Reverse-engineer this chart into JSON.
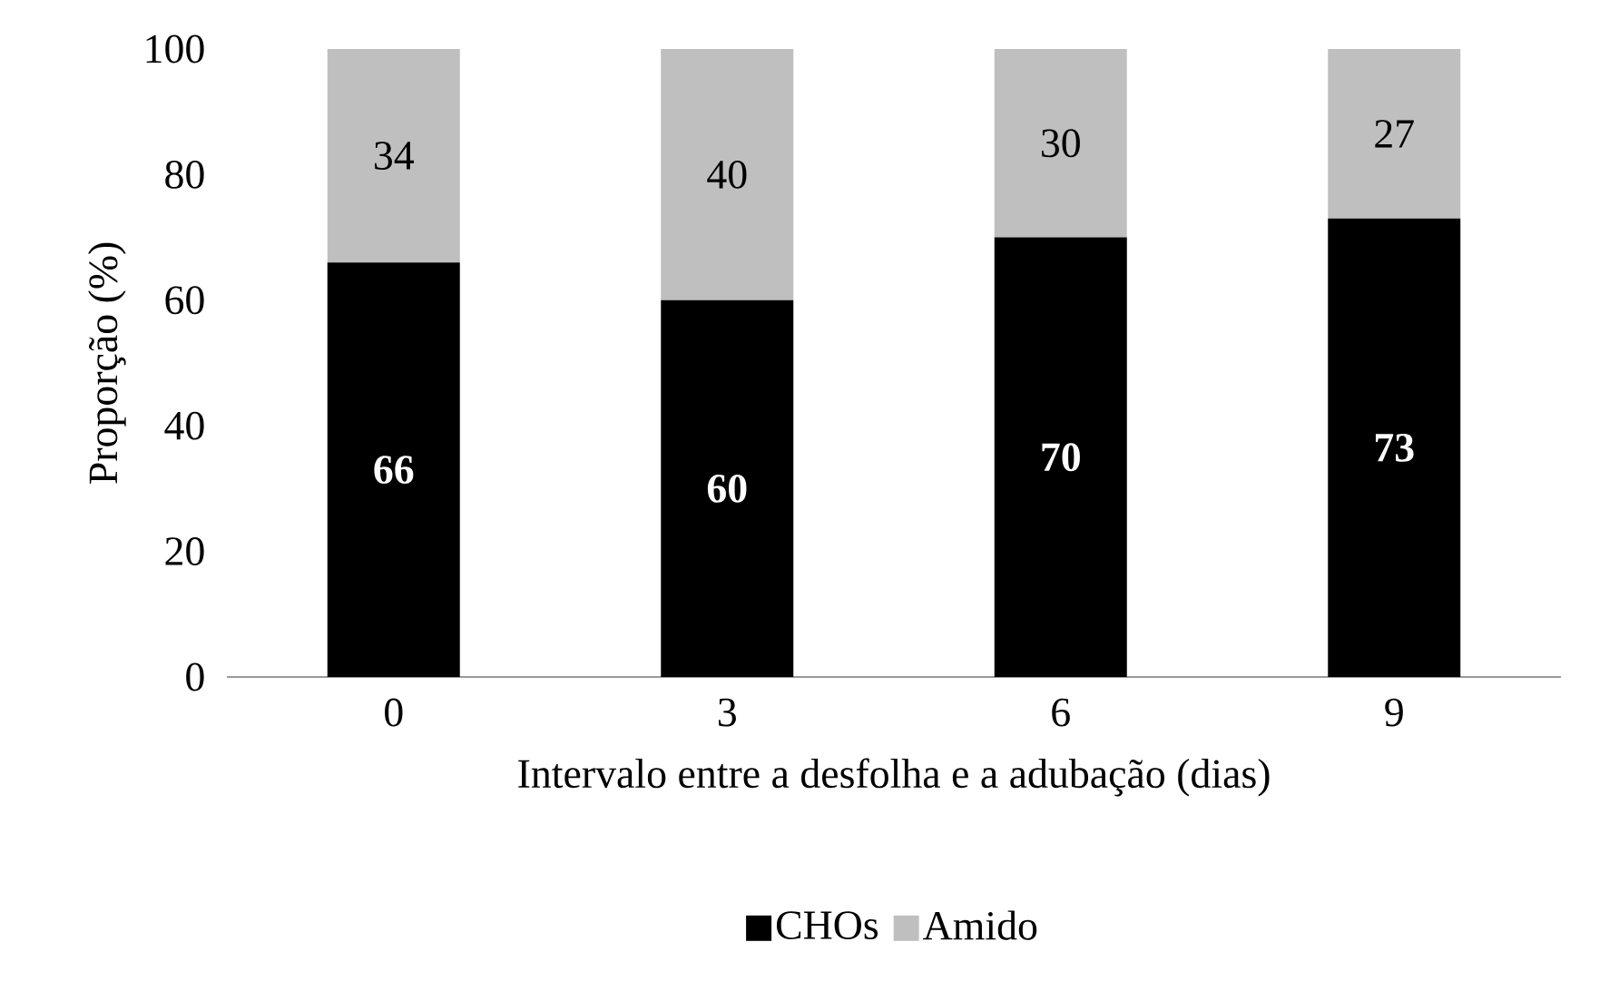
{
  "chart_data": {
    "type": "bar",
    "stacked": true,
    "xlabel": "Intervalo entre a desfolha e a adubação (dias)",
    "ylabel": "Proporção (%)",
    "categories": [
      "0",
      "3",
      "6",
      "9"
    ],
    "series": [
      {
        "name": "CHOs",
        "color": "#000000",
        "values": [
          66,
          60,
          70,
          73
        ]
      },
      {
        "name": "Amido",
        "color": "#bfbfbf",
        "values": [
          34,
          40,
          30,
          27
        ]
      }
    ],
    "ylim": [
      0,
      100
    ],
    "yticks": [
      0,
      20,
      40,
      60,
      80,
      100
    ],
    "data_labels": true,
    "legend": "bottom"
  }
}
